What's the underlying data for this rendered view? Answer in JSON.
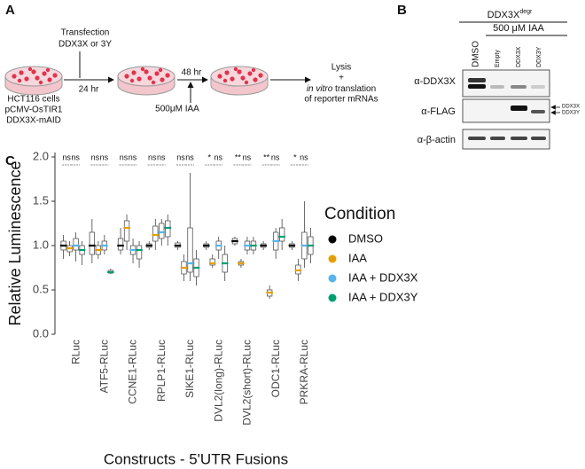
{
  "panel_a": {
    "label": "A",
    "transfection": [
      "Transfection",
      "DDX3X or 3Y"
    ],
    "time_1": "24 hr",
    "time_2": "48 hr",
    "cells": [
      "HCT116 cells",
      "pCMV-OsTIR1",
      "DDX3X-mAID"
    ],
    "treatment": "500μM IAA",
    "readout": [
      "Lysis",
      "+",
      "in vitro",
      " translation",
      "of reporter mRNAs"
    ]
  },
  "panel_b": {
    "label": "B",
    "header": "DDX3X",
    "header_sup": "degr",
    "treatment": "500 μM IAA",
    "lanes": [
      "DMSO",
      "Empty",
      "DDX3X",
      "DDX3Y"
    ],
    "rows": [
      "α-DDX3X",
      "α-FLAG",
      "α-β-actin"
    ],
    "band_labels": [
      "DDX3X",
      "DDX3Y"
    ]
  },
  "chart_data": {
    "type": "box",
    "panel_label": "C",
    "y_label": "Relative Luminescence",
    "x_label": "Constructs - 5'UTR Fusions",
    "legend_title": "Condition",
    "categories": [
      "RLuc",
      "ATF5-RLuc",
      "CCNE1-RLuc",
      "RPLP1-RLuc",
      "SIKE1-RLuc",
      "DVL2(long)-RLuc",
      "DVL2(short)-RLuc",
      "ODC1-RLuc",
      "PRKRA-RLuc"
    ],
    "significance": [
      [
        "ns",
        "ns"
      ],
      [
        "ns",
        "ns"
      ],
      [
        "ns",
        "ns"
      ],
      [
        "ns",
        "ns"
      ],
      [
        "ns",
        "ns"
      ],
      [
        "*",
        "ns"
      ],
      [
        "**",
        "ns"
      ],
      [
        "**",
        "ns"
      ],
      [
        "*",
        "ns"
      ]
    ],
    "ylim": [
      0,
      2.05
    ],
    "yticks": [
      {
        "value": 0,
        "label": "0.0"
      },
      {
        "value": 0.5,
        "label": "0.5"
      },
      {
        "value": 1,
        "label": "1.0"
      },
      {
        "value": 1.5,
        "label": "1.5"
      },
      {
        "value": 2,
        "label": "2.0"
      }
    ],
    "series": [
      {
        "name": "DMSO",
        "color": "#000000",
        "boxes": [
          {
            "min": 0.85,
            "q1": 0.95,
            "median": 1.0,
            "q3": 1.05,
            "max": 1.12
          },
          {
            "min": 0.8,
            "q1": 0.9,
            "median": 1.0,
            "q3": 1.15,
            "max": 1.3
          },
          {
            "min": 0.9,
            "q1": 0.95,
            "median": 1.0,
            "q3": 1.08,
            "max": 1.2
          },
          {
            "min": 0.95,
            "q1": 0.98,
            "median": 1.0,
            "q3": 1.02,
            "max": 1.05
          },
          {
            "min": 0.95,
            "q1": 0.98,
            "median": 1.0,
            "q3": 1.03,
            "max": 1.05
          },
          {
            "min": 0.95,
            "q1": 0.98,
            "median": 1.0,
            "q3": 1.02,
            "max": 1.05
          },
          {
            "min": 1.0,
            "q1": 1.02,
            "median": 1.05,
            "q3": 1.08,
            "max": 1.1
          },
          {
            "min": 0.95,
            "q1": 0.98,
            "median": 1.0,
            "q3": 1.02,
            "max": 1.05
          },
          {
            "min": 0.95,
            "q1": 0.98,
            "median": 1.0,
            "q3": 1.02,
            "max": 1.05
          }
        ]
      },
      {
        "name": "IAA",
        "color": "#e69f00",
        "boxes": [
          {
            "min": 0.88,
            "q1": 0.93,
            "median": 0.97,
            "q3": 1.0,
            "max": 1.05
          },
          {
            "min": 0.85,
            "q1": 0.9,
            "median": 0.95,
            "q3": 1.0,
            "max": 1.05
          },
          {
            "min": 0.95,
            "q1": 1.05,
            "median": 1.2,
            "q3": 1.28,
            "max": 1.35
          },
          {
            "min": 0.95,
            "q1": 1.05,
            "median": 1.12,
            "q3": 1.22,
            "max": 1.3
          },
          {
            "min": 0.6,
            "q1": 0.68,
            "median": 0.75,
            "q3": 0.82,
            "max": 0.9
          },
          {
            "min": 0.75,
            "q1": 0.78,
            "median": 0.8,
            "q3": 0.85,
            "max": 0.9
          },
          {
            "min": 0.75,
            "q1": 0.78,
            "median": 0.8,
            "q3": 0.82,
            "max": 0.85
          },
          {
            "min": 0.4,
            "q1": 0.43,
            "median": 0.47,
            "q3": 0.5,
            "max": 0.55
          },
          {
            "min": 0.6,
            "q1": 0.68,
            "median": 0.72,
            "q3": 0.78,
            "max": 0.85
          }
        ]
      },
      {
        "name": "IAA + DDX3X",
        "color": "#56b4e9",
        "boxes": [
          {
            "min": 0.82,
            "q1": 0.95,
            "median": 1.0,
            "q3": 1.08,
            "max": 1.15
          },
          {
            "min": 0.9,
            "q1": 0.95,
            "median": 1.0,
            "q3": 1.05,
            "max": 1.12
          },
          {
            "min": 0.8,
            "q1": 0.9,
            "median": 0.95,
            "q3": 1.0,
            "max": 1.08
          },
          {
            "min": 1.0,
            "q1": 1.08,
            "median": 1.15,
            "q3": 1.25,
            "max": 1.3
          },
          {
            "min": 0.6,
            "q1": 0.7,
            "median": 0.8,
            "q3": 1.2,
            "max": 1.82
          },
          {
            "min": 0.85,
            "q1": 0.95,
            "median": 1.0,
            "q3": 1.05,
            "max": 1.1
          },
          {
            "min": 0.9,
            "q1": 0.95,
            "median": 1.0,
            "q3": 1.05,
            "max": 1.1
          },
          {
            "min": 0.85,
            "q1": 0.95,
            "median": 1.05,
            "q3": 1.15,
            "max": 1.2
          },
          {
            "min": 0.75,
            "q1": 0.85,
            "median": 1.0,
            "q3": 1.15,
            "max": 1.5
          }
        ]
      },
      {
        "name": "IAA + DDX3Y",
        "color": "#009e73",
        "boxes": [
          {
            "min": 0.78,
            "q1": 0.9,
            "median": 0.95,
            "q3": 1.0,
            "max": 1.05
          },
          {
            "min": 0.68,
            "q1": 0.69,
            "median": 0.7,
            "q3": 0.72,
            "max": 0.74
          },
          {
            "min": 0.75,
            "q1": 0.85,
            "median": 0.95,
            "q3": 1.0,
            "max": 1.05
          },
          {
            "min": 1.0,
            "q1": 1.1,
            "median": 1.2,
            "q3": 1.28,
            "max": 1.35
          },
          {
            "min": 0.55,
            "q1": 0.65,
            "median": 0.75,
            "q3": 0.85,
            "max": 0.95
          },
          {
            "min": 0.6,
            "q1": 0.7,
            "median": 0.8,
            "q3": 0.9,
            "max": 1.0
          },
          {
            "min": 0.9,
            "q1": 0.95,
            "median": 1.0,
            "q3": 1.05,
            "max": 1.1
          },
          {
            "min": 0.95,
            "q1": 1.05,
            "median": 1.1,
            "q3": 1.2,
            "max": 1.3
          },
          {
            "min": 0.8,
            "q1": 0.9,
            "median": 1.0,
            "q3": 1.1,
            "max": 1.2
          }
        ]
      }
    ]
  }
}
